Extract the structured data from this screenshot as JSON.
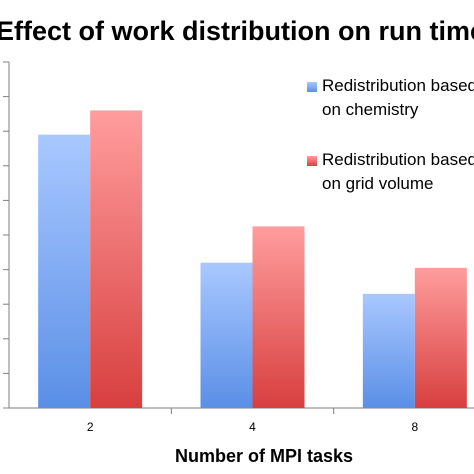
{
  "chart_data": {
    "type": "bar",
    "title": "Effect of work distribution on run time",
    "xlabel": "Number of MPI tasks",
    "ylabel": "",
    "categories": [
      "2",
      "4",
      "8"
    ],
    "series": [
      {
        "name": "Redistribution based on chemistry",
        "values": [
          7.9,
          4.2,
          3.3
        ],
        "color_top": "#a9c8ff",
        "color_bottom": "#5a8fe6"
      },
      {
        "name": "Redistribution based on grid volume",
        "values": [
          8.6,
          5.25,
          4.05
        ],
        "color_top": "#ff9d9d",
        "color_bottom": "#d83f3f"
      }
    ],
    "ylim": [
      0,
      10
    ],
    "y_grid_step": 1,
    "grid": false,
    "legend_position": "top-right"
  }
}
